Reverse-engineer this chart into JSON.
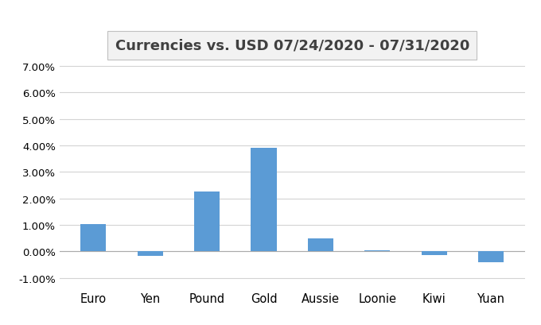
{
  "title": "Currencies vs. USD 07/24/2020 - 07/31/2020",
  "categories": [
    "Euro",
    "Yen",
    "Pound",
    "Gold",
    "Aussie",
    "Loonie",
    "Kiwi",
    "Yuan"
  ],
  "values": [
    0.0103,
    -0.0017,
    0.0225,
    0.039,
    0.005,
    0.0004,
    -0.0015,
    -0.004
  ],
  "bar_color": "#5b9bd5",
  "ylim": [
    -0.013,
    0.073
  ],
  "yticks": [
    -0.01,
    0.0,
    0.01,
    0.02,
    0.03,
    0.04,
    0.05,
    0.06,
    0.07
  ],
  "background_color": "#ffffff",
  "grid_color": "#d3d3d3",
  "title_fontsize": 13,
  "title_box_facecolor": "#f2f2f2",
  "title_box_edgecolor": "#c0c0c0"
}
